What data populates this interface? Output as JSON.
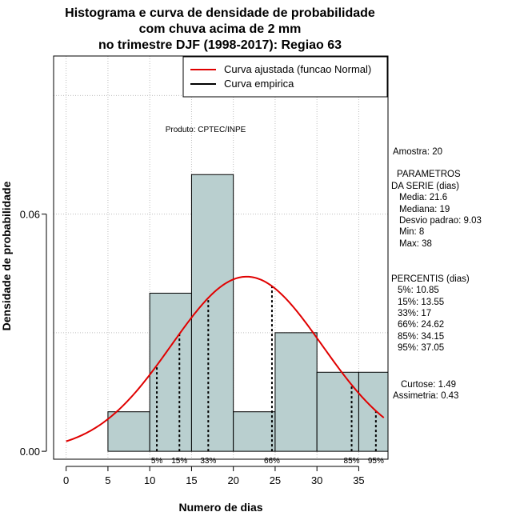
{
  "chart_data": {
    "type": "histogram",
    "title": [
      "Histograma e curva de densidade de probabilidade",
      "com chuva acima de 2 mm",
      "no trimestre DJF (1998-2017): Regiao 63"
    ],
    "xlabel": "Numero de dias",
    "ylabel": "Densidade de probabilidade",
    "xlim": [
      -1.5,
      38.5
    ],
    "ylim": [
      -0.002,
      0.1
    ],
    "x_ticks": [
      0,
      5,
      10,
      15,
      20,
      25,
      30,
      35
    ],
    "y_ticks": [
      0.0,
      0.06
    ],
    "y_tick_labels": [
      "0.00",
      "0.06"
    ],
    "grid": true,
    "bins": [
      {
        "from": 5,
        "to": 10,
        "density": 0.01
      },
      {
        "from": 10,
        "to": 15,
        "density": 0.04
      },
      {
        "from": 15,
        "to": 20,
        "density": 0.07
      },
      {
        "from": 20,
        "to": 25,
        "density": 0.01
      },
      {
        "from": 25,
        "to": 30,
        "density": 0.03
      },
      {
        "from": 30,
        "to": 35,
        "density": 0.02
      },
      {
        "from": 35,
        "to": 40,
        "density": 0.02
      }
    ],
    "normal_fit": {
      "mean": 21.6,
      "sd": 9.03,
      "x_range": [
        0,
        38
      ]
    },
    "percentiles": [
      {
        "label": "5%",
        "value": 10.85
      },
      {
        "label": "15%",
        "value": 13.55
      },
      {
        "label": "33%",
        "value": 17
      },
      {
        "label": "66%",
        "value": 24.62
      },
      {
        "label": "85%",
        "value": 34.15
      },
      {
        "label": "95%",
        "value": 37.05
      }
    ],
    "legend": [
      {
        "label": "Curva ajustada (funcao Normal)",
        "color": "#e00000"
      },
      {
        "label": "Curva empirica",
        "color": "#000000"
      }
    ],
    "legend_position": "top-right",
    "annotation": "Produto: CPTEC/INPE",
    "bar_color": "#b9cfcf",
    "curve_color": "#e00000"
  },
  "stats": {
    "amostra": "Amostra: 20",
    "params_title_1": "PARAMETROS",
    "params_title_2": "DA SERIE (dias)",
    "params": [
      "Media: 21.6",
      "Mediana: 19",
      "Desvio padrao: 9.03",
      "Min: 8",
      "Max: 38"
    ],
    "percentis_title": "PERCENTIS (dias)",
    "percentis": [
      "5%: 10.85",
      "15%: 13.55",
      "33%: 17",
      "66%: 24.62",
      "85%: 34.15",
      "95%: 37.05"
    ],
    "curtose": "Curtose: 1.49",
    "assimetria": "Assimetria: 0.43"
  }
}
